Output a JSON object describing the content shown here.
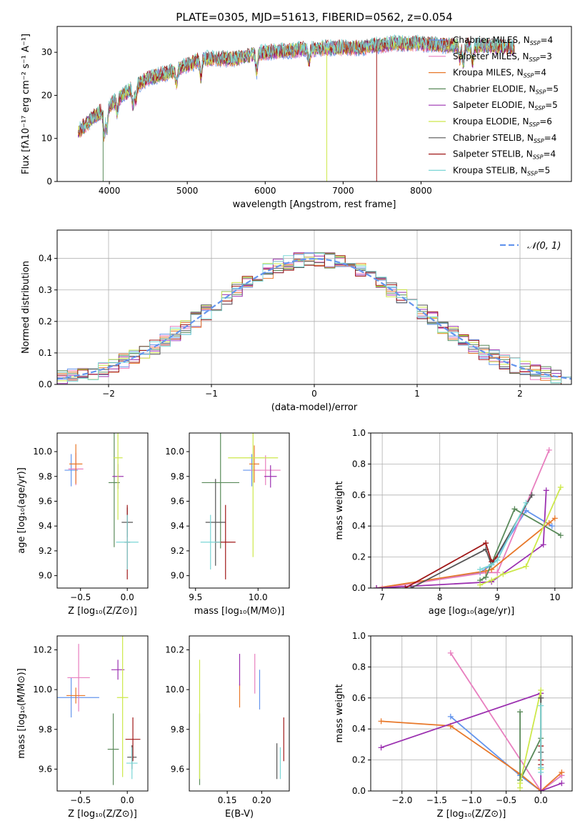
{
  "figure_title": "PLATE=0305, MJD=51613, FIBERID=0562, z=0.054",
  "colors": {
    "chabrier_miles": "#6495ed",
    "salpeter_miles": "#e87fbf",
    "kroupa_miles": "#e8782a",
    "chabrier_elodie": "#5a8a5a",
    "salpeter_elodie": "#9b30b0",
    "kroupa_elodie": "#cde84a",
    "chabrier_stelib": "#555555",
    "salpeter_stelib": "#a01818",
    "kroupa_stelib": "#7ad6d6",
    "grid": "#b0b0b0"
  },
  "legend_spectrum": [
    {
      "name": "Chabrier MILES",
      "nssp": "4",
      "color": "#6495ed"
    },
    {
      "name": "Salpeter MILES",
      "nssp": "3",
      "color": "#e87fbf"
    },
    {
      "name": "Kroupa MILES",
      "nssp": "4",
      "color": "#e8782a"
    },
    {
      "name": "Chabrier ELODIE",
      "nssp": "5",
      "color": "#5a8a5a"
    },
    {
      "name": "Salpeter ELODIE",
      "nssp": "5",
      "color": "#9b30b0"
    },
    {
      "name": "Kroupa ELODIE",
      "nssp": "6",
      "color": "#cde84a"
    },
    {
      "name": "Chabrier STELIB",
      "nssp": "4",
      "color": "#555555"
    },
    {
      "name": "Salpeter STELIB",
      "nssp": "4",
      "color": "#a01818"
    },
    {
      "name": "Kroupa STELIB",
      "nssp": "5",
      "color": "#7ad6d6"
    }
  ],
  "legend_hist": "𝒩(0, 1)",
  "chart_data": [
    {
      "id": "spectrum",
      "type": "line",
      "xlabel": "wavelength [Angstrom, rest frame]",
      "ylabel": "Flux [fλ10⁻¹⁷ erg cm⁻² s⁻¹ A⁻¹]",
      "xlim": [
        3330,
        9930
      ],
      "ylim": [
        0,
        36
      ],
      "xticks": [
        "4000",
        "5000",
        "6000",
        "7000",
        "8000"
      ],
      "xtick_values": [
        4000,
        5000,
        6000,
        7000,
        8000
      ],
      "yticks": [
        "0",
        "10",
        "20",
        "30"
      ],
      "ytick_values": [
        0,
        10,
        20,
        30
      ],
      "x_range": [
        3600,
        9200
      ],
      "continuum": [
        [
          3600,
          11.5
        ],
        [
          3800,
          15
        ],
        [
          4000,
          17.5
        ],
        [
          4200,
          20.5
        ],
        [
          4500,
          24
        ],
        [
          4800,
          25.5
        ],
        [
          5200,
          28.5
        ],
        [
          5600,
          28.5
        ],
        [
          6000,
          30
        ],
        [
          6400,
          30.5
        ],
        [
          6800,
          31
        ],
        [
          7200,
          31
        ],
        [
          7600,
          32
        ],
        [
          8000,
          32
        ],
        [
          8400,
          31.5
        ],
        [
          8800,
          31.5
        ],
        [
          9200,
          31
        ]
      ],
      "absorption_lines": [
        [
          3933,
          -6
        ],
        [
          3968,
          -5
        ],
        [
          4102,
          -3
        ],
        [
          4304,
          -4
        ],
        [
          4340,
          -3
        ],
        [
          4861,
          -3
        ],
        [
          5175,
          -4
        ],
        [
          5890,
          -4
        ],
        [
          6563,
          -3
        ],
        [
          8498,
          -3
        ],
        [
          8542,
          -4
        ],
        [
          8662,
          -4
        ]
      ],
      "dropouts": [
        [
          3920,
          "#5a8a5a"
        ],
        [
          6790,
          "#cde84a"
        ],
        [
          7430,
          "#a01818"
        ]
      ]
    },
    {
      "id": "residual_hist",
      "type": "line",
      "xlabel": "(data-model)/error",
      "ylabel": "Normed distribution",
      "xlim": [
        -2.5,
        2.5
      ],
      "ylim": [
        0,
        0.49
      ],
      "xticks": [
        "−2",
        "−1",
        "0",
        "1",
        "2"
      ],
      "xtick_values": [
        -2,
        -1,
        0,
        1,
        2
      ],
      "yticks": [
        "0.0",
        "0.1",
        "0.2",
        "0.3",
        "0.4"
      ],
      "ytick_values": [
        0,
        0.1,
        0.2,
        0.3,
        0.4
      ],
      "grid": true,
      "legend_position": "top-right",
      "bin_width": 0.1,
      "curve": {
        "name": "𝒩(0, 1)",
        "mean": 0,
        "sigma": 1,
        "color": "#6495ed",
        "style": "dashed"
      }
    },
    {
      "id": "age_vs_Z",
      "type": "scatter",
      "xlabel": "Z [log₁₀(Z/Z⊙)]",
      "ylabel": "age  [log₁₀(age/yr)]",
      "xlim": [
        -0.75,
        0.22
      ],
      "ylim": [
        8.9,
        10.15
      ],
      "xticks": [
        "−0.5",
        "0.0"
      ],
      "xtick_values": [
        -0.5,
        0.0
      ],
      "yticks": [
        "9.0",
        "9.2",
        "9.4",
        "9.6",
        "9.8",
        "10.0"
      ],
      "ytick_values": [
        9.0,
        9.2,
        9.4,
        9.6,
        9.8,
        10.0
      ],
      "points": [
        {
          "color": "#6495ed",
          "x": -0.6,
          "y": 9.85,
          "xerr": 0.07,
          "yerr": 0.13
        },
        {
          "color": "#e87fbf",
          "x": -0.55,
          "y": 9.86,
          "xerr": 0.08,
          "yerr": 0.13
        },
        {
          "color": "#e8782a",
          "x": -0.55,
          "y": 9.9,
          "xerr": 0.07,
          "yerr": 0.16
        },
        {
          "color": "#5a8a5a",
          "x": -0.14,
          "y": 9.75,
          "xerr": 0.06,
          "yerr": 0.52
        },
        {
          "color": "#9b30b0",
          "x": -0.1,
          "y": 9.8,
          "xerr": 0.06,
          "yerr": 0.1
        },
        {
          "color": "#cde84a",
          "x": -0.1,
          "y": 9.95,
          "xerr": 0.05,
          "yerr": 0.5
        },
        {
          "color": "#555555",
          "x": 0.0,
          "y": 9.43,
          "xerr": 0.06,
          "yerr": 0.12
        },
        {
          "color": "#a01818",
          "x": 0.0,
          "y": 9.27,
          "xerr": 0.03,
          "yerr": 0.3
        },
        {
          "color": "#7ad6d6",
          "x": 0.0,
          "y": 9.27,
          "xerr": 0.12,
          "yerr": 0.22
        }
      ]
    },
    {
      "id": "age_vs_mass",
      "type": "scatter",
      "xlabel": "mass [log₁₀(M/M⊙)]",
      "ylabel": "",
      "xlim": [
        9.45,
        10.25
      ],
      "ylim": [
        8.9,
        10.15
      ],
      "xticks": [
        "9.5",
        "10.0"
      ],
      "xtick_values": [
        9.5,
        10.0
      ],
      "yticks": [
        "9.0",
        "9.2",
        "9.4",
        "9.6",
        "9.8",
        "10.0"
      ],
      "ytick_values": [
        9.0,
        9.2,
        9.4,
        9.6,
        9.8,
        10.0
      ],
      "points": [
        {
          "color": "#6495ed",
          "x": 9.95,
          "y": 9.85,
          "xerr": 0.07,
          "yerr": 0.13
        },
        {
          "color": "#e87fbf",
          "x": 10.06,
          "y": 9.85,
          "xerr": 0.12,
          "yerr": 0.12
        },
        {
          "color": "#e8782a",
          "x": 9.97,
          "y": 9.9,
          "xerr": 0.04,
          "yerr": 0.15
        },
        {
          "color": "#5a8a5a",
          "x": 9.7,
          "y": 9.75,
          "xerr": 0.15,
          "yerr": 0.53
        },
        {
          "color": "#9b30b0",
          "x": 10.1,
          "y": 9.8,
          "xerr": 0.05,
          "yerr": 0.09
        },
        {
          "color": "#cde84a",
          "x": 9.96,
          "y": 9.95,
          "xerr": 0.2,
          "yerr": 0.8
        },
        {
          "color": "#555555",
          "x": 9.66,
          "y": 9.43,
          "xerr": 0.08,
          "yerr": 0.35
        },
        {
          "color": "#a01818",
          "x": 9.74,
          "y": 9.27,
          "xerr": 0.08,
          "yerr": 0.3
        },
        {
          "color": "#7ad6d6",
          "x": 9.62,
          "y": 9.27,
          "xerr": 0.08,
          "yerr": 0.22
        }
      ]
    },
    {
      "id": "massweight_vs_age",
      "type": "line",
      "xlabel": "age  [log₁₀(age/yr)]",
      "ylabel": "mass weight",
      "xlim": [
        6.8,
        10.3
      ],
      "ylim": [
        0,
        1.0
      ],
      "xticks": [
        "7",
        "8",
        "9",
        "10"
      ],
      "xtick_values": [
        7,
        8,
        9,
        10
      ],
      "yticks": [
        "0.0",
        "0.2",
        "0.4",
        "0.6",
        "0.8",
        "1.0"
      ],
      "ytick_values": [
        0,
        0.2,
        0.4,
        0.6,
        0.8,
        1.0
      ],
      "grid": true,
      "series": [
        {
          "color": "#6495ed",
          "x": [
            6.9,
            8.7,
            8.9,
            9.5,
            9.95
          ],
          "y": [
            0,
            0.1,
            0.15,
            0.5,
            0.4
          ]
        },
        {
          "color": "#e87fbf",
          "x": [
            7.0,
            8.8,
            9.0,
            9.9
          ],
          "y": [
            0,
            0.1,
            0.1,
            0.89
          ]
        },
        {
          "color": "#e8782a",
          "x": [
            6.9,
            8.8,
            8.9,
            9.9,
            10.0
          ],
          "y": [
            0,
            0.11,
            0.12,
            0.42,
            0.45
          ]
        },
        {
          "color": "#5a8a5a",
          "x": [
            8.7,
            8.8,
            9.3,
            10.1
          ],
          "y": [
            0.05,
            0.07,
            0.51,
            0.34
          ]
        },
        {
          "color": "#9b30b0",
          "x": [
            6.9,
            8.9,
            9.8,
            9.85
          ],
          "y": [
            0,
            0.04,
            0.28,
            0.63
          ]
        },
        {
          "color": "#cde84a",
          "x": [
            8.7,
            8.9,
            9.1,
            9.5,
            10.1
          ],
          "y": [
            0.02,
            0.05,
            0.09,
            0.14,
            0.65
          ]
        },
        {
          "color": "#555555",
          "x": [
            7.5,
            8.8,
            8.9,
            9.6
          ],
          "y": [
            0,
            0.25,
            0.15,
            0.6
          ]
        },
        {
          "color": "#a01818",
          "x": [
            7.4,
            8.8,
            8.9,
            9.0
          ],
          "y": [
            0,
            0.29,
            0.17,
            0.2
          ]
        },
        {
          "color": "#7ad6d6",
          "x": [
            8.7,
            8.9,
            9.0,
            9.5
          ],
          "y": [
            0.12,
            0.15,
            0.18,
            0.55
          ]
        }
      ]
    },
    {
      "id": "mass_vs_Z",
      "type": "scatter",
      "xlabel": "Z [log₁₀(Z/Z⊙)]",
      "ylabel": "mass [log₁₀(M/M⊙)]",
      "xlim": [
        -0.75,
        0.22
      ],
      "ylim": [
        9.49,
        10.27
      ],
      "xticks": [
        "−0.5",
        "0.0"
      ],
      "xtick_values": [
        -0.5,
        0.0
      ],
      "yticks": [
        "9.6",
        "9.8",
        "10.0",
        "10.2"
      ],
      "ytick_values": [
        9.6,
        9.8,
        10.0,
        10.2
      ],
      "points": [
        {
          "color": "#6495ed",
          "x": -0.6,
          "y": 9.96,
          "xerr": 0.3,
          "yerr": 0.1
        },
        {
          "color": "#e87fbf",
          "x": -0.52,
          "y": 10.06,
          "xerr": 0.12,
          "yerr": 0.17
        },
        {
          "color": "#e8782a",
          "x": -0.55,
          "y": 9.97,
          "xerr": 0.1,
          "yerr": 0.04
        },
        {
          "color": "#5a8a5a",
          "x": -0.15,
          "y": 9.7,
          "xerr": 0.06,
          "yerr": 0.18
        },
        {
          "color": "#9b30b0",
          "x": -0.1,
          "y": 10.1,
          "xerr": 0.07,
          "yerr": 0.05
        },
        {
          "color": "#cde84a",
          "x": -0.05,
          "y": 9.96,
          "xerr": 0.06,
          "yerr": 0.4
        },
        {
          "color": "#555555",
          "x": 0.05,
          "y": 9.66,
          "xerr": 0.05,
          "yerr": 0.06
        },
        {
          "color": "#a01818",
          "x": 0.06,
          "y": 9.75,
          "xerr": 0.08,
          "yerr": 0.11
        },
        {
          "color": "#7ad6d6",
          "x": 0.05,
          "y": 9.63,
          "xerr": 0.06,
          "yerr": 0.08
        }
      ]
    },
    {
      "id": "mass_vs_EBV",
      "type": "scatter",
      "xlabel": "E(B-V)",
      "ylabel": "",
      "xlim": [
        0.095,
        0.24
      ],
      "ylim": [
        9.49,
        10.27
      ],
      "xticks": [
        "0.15",
        "0.20"
      ],
      "xtick_values": [
        0.15,
        0.2
      ],
      "yticks": [
        "9.6",
        "9.8",
        "10.0",
        "10.2"
      ],
      "ytick_values": [
        9.6,
        9.8,
        10.0,
        10.2
      ],
      "points": [
        {
          "color": "#6495ed",
          "x": 0.197,
          "y": 10.0,
          "xerr": 0.0,
          "yerr": 0.1
        },
        {
          "color": "#e87fbf",
          "x": 0.19,
          "y": 10.08,
          "xerr": 0.0,
          "yerr": 0.1
        },
        {
          "color": "#e8782a",
          "x": 0.168,
          "y": 9.97,
          "xerr": 0.0,
          "yerr": 0.06
        },
        {
          "color": "#5a8a5a",
          "x": 0.11,
          "y": 9.7,
          "xerr": 0.0,
          "yerr": 0.18
        },
        {
          "color": "#9b30b0",
          "x": 0.168,
          "y": 10.1,
          "xerr": 0.0,
          "yerr": 0.08
        },
        {
          "color": "#cde84a",
          "x": 0.11,
          "y": 9.85,
          "xerr": 0.0,
          "yerr": 0.3
        },
        {
          "color": "#555555",
          "x": 0.222,
          "y": 9.64,
          "xerr": 0.0,
          "yerr": 0.09
        },
        {
          "color": "#a01818",
          "x": 0.232,
          "y": 9.75,
          "xerr": 0.0,
          "yerr": 0.11
        },
        {
          "color": "#7ad6d6",
          "x": 0.227,
          "y": 9.63,
          "xerr": 0.0,
          "yerr": 0.08
        }
      ]
    },
    {
      "id": "massweight_vs_Z",
      "type": "line",
      "xlabel": "Z [log₁₀(Z/Z⊙)]",
      "ylabel": "mass weight",
      "xlim": [
        -2.45,
        0.45
      ],
      "ylim": [
        0,
        1.0
      ],
      "xticks": [
        "−2.0",
        "−1.5",
        "−1.0",
        "−0.5",
        "0.0"
      ],
      "xtick_values": [
        -2.0,
        -1.5,
        -1.0,
        -0.5,
        0.0
      ],
      "yticks": [
        "0.0",
        "0.2",
        "0.4",
        "0.6",
        "0.8",
        "1.0"
      ],
      "ytick_values": [
        0,
        0.2,
        0.4,
        0.6,
        0.8,
        1.0
      ],
      "grid": true,
      "series": [
        {
          "color": "#6495ed",
          "x": [
            -1.3,
            -0.3,
            0.0,
            0.3
          ],
          "y": [
            0.48,
            0.1,
            0.0,
            0.1
          ]
        },
        {
          "color": "#e87fbf",
          "x": [
            -1.3,
            0.0,
            0.3
          ],
          "y": [
            0.89,
            0.0,
            0.1
          ]
        },
        {
          "color": "#e8782a",
          "x": [
            -2.3,
            -1.3,
            -0.3,
            0.0,
            0.3
          ],
          "y": [
            0.45,
            0.42,
            0.11,
            0.0,
            0.12
          ]
        },
        {
          "color": "#5a8a5a",
          "x": [
            -0.3,
            -0.3,
            0.0
          ],
          "y": [
            0.51,
            0.07,
            0.34
          ]
        },
        {
          "color": "#9b30b0",
          "x": [
            -2.3,
            0.0,
            0.0,
            0.3
          ],
          "y": [
            0.28,
            0.63,
            0.0,
            0.05
          ]
        },
        {
          "color": "#cde84a",
          "x": [
            -0.3,
            -0.3,
            0.0,
            0.0
          ],
          "y": [
            0.02,
            0.05,
            0.65,
            0.14
          ]
        },
        {
          "color": "#555555",
          "x": [
            0.0,
            0.0,
            0.0
          ],
          "y": [
            0.6,
            0.25,
            0.15
          ]
        },
        {
          "color": "#a01818",
          "x": [
            0.0,
            0.0,
            0.0
          ],
          "y": [
            0.29,
            0.2,
            0.17
          ]
        },
        {
          "color": "#7ad6d6",
          "x": [
            0.0,
            0.0,
            0.0
          ],
          "y": [
            0.55,
            0.15,
            0.12
          ]
        }
      ]
    }
  ]
}
